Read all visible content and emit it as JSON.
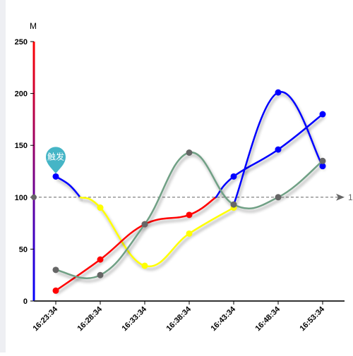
{
  "chart_data": {
    "type": "line",
    "y_unit": "M",
    "ylim": [
      0,
      250
    ],
    "y_ticks": [
      0,
      50,
      100,
      150,
      200,
      250
    ],
    "categories": [
      "16:23:34",
      "16:28:34",
      "16:33:34",
      "16:38:34",
      "16:43:34",
      "16:48:34",
      "16:53:34"
    ],
    "series": [
      {
        "color": "#0000ff",
        "values": [
          120,
          null,
          null,
          null,
          120,
          146,
          180
        ]
      },
      {
        "color": "#ffff00",
        "values": [
          null,
          90,
          34,
          65,
          90,
          null,
          null
        ]
      },
      {
        "color": "#ff0000",
        "values": [
          10,
          40,
          74,
          83,
          null,
          null,
          null
        ]
      },
      {
        "color": "#0000ff",
        "values": [
          null,
          null,
          null,
          null,
          93,
          201,
          130
        ]
      },
      {
        "color": "#70a085",
        "values": [
          30,
          25,
          74,
          143,
          93,
          100,
          135
        ]
      }
    ],
    "segments": [
      {
        "color": "#0000ff",
        "points": [
          [
            0,
            120
          ],
          [
            0.3,
            112
          ],
          [
            0.55,
            100
          ]
        ]
      },
      {
        "color": "#ffff00",
        "points": [
          [
            0.55,
            100
          ],
          [
            1,
            90
          ],
          [
            2,
            34
          ],
          [
            3,
            65
          ],
          [
            4,
            90
          ]
        ]
      },
      {
        "color": "#ff0000",
        "points": [
          [
            0,
            10
          ],
          [
            1,
            40
          ],
          [
            2,
            74
          ],
          [
            3,
            83
          ],
          [
            3.6,
            100
          ]
        ]
      },
      {
        "color": "#0000ff",
        "points": [
          [
            3.6,
            100
          ],
          [
            4,
            120
          ],
          [
            5,
            146
          ],
          [
            6,
            180
          ]
        ]
      },
      {
        "color": "#0000ff",
        "points": [
          [
            4,
            93
          ],
          [
            5,
            201
          ],
          [
            6,
            130
          ]
        ]
      },
      {
        "color": "#70a085",
        "points": [
          [
            0,
            30
          ],
          [
            1,
            25
          ],
          [
            2,
            74
          ],
          [
            3,
            143
          ],
          [
            4,
            93
          ],
          [
            5,
            100
          ],
          [
            6,
            135
          ]
        ]
      }
    ],
    "markers": [
      {
        "color": "#0000ff",
        "x": 0,
        "y": 120
      },
      {
        "color": "#ffff00",
        "x": 1,
        "y": 90
      },
      {
        "color": "#ffff00",
        "x": 2,
        "y": 34
      },
      {
        "color": "#ffff00",
        "x": 3,
        "y": 65
      },
      {
        "color": "#ffff00",
        "x": 4,
        "y": 90
      },
      {
        "color": "#ff0000",
        "x": 0,
        "y": 10
      },
      {
        "color": "#ff0000",
        "x": 1,
        "y": 40
      },
      {
        "color": "#ff0000",
        "x": 2,
        "y": 74
      },
      {
        "color": "#ff0000",
        "x": 3,
        "y": 83
      },
      {
        "color": "#0000ff",
        "x": 4,
        "y": 120
      },
      {
        "color": "#0000ff",
        "x": 5,
        "y": 146
      },
      {
        "color": "#0000ff",
        "x": 6,
        "y": 180
      },
      {
        "color": "#0000ff",
        "x": 5,
        "y": 201
      },
      {
        "color": "#0000ff",
        "x": 6,
        "y": 130
      },
      {
        "color": "#70a085",
        "x": 0,
        "y": 30
      },
      {
        "color": "#70a085",
        "x": 1,
        "y": 25
      },
      {
        "color": "#70a085",
        "x": 2,
        "y": 74
      },
      {
        "color": "#70a085",
        "x": 3,
        "y": 143
      },
      {
        "color": "#70a085",
        "x": 4,
        "y": 93
      },
      {
        "color": "#70a085",
        "x": 5,
        "y": 100
      },
      {
        "color": "#70a085",
        "x": 6,
        "y": 135
      }
    ],
    "mark_line": {
      "y": 100,
      "label": "1",
      "color": "#666666"
    },
    "mark_point": {
      "label": "触发",
      "x": 0,
      "y": 120,
      "color": "#45b5c6"
    },
    "axis_colors": {
      "y_axis_top": "#ff0000",
      "y_axis_bottom": "#0000ff",
      "x_axis": "#333333"
    },
    "grid": false
  }
}
